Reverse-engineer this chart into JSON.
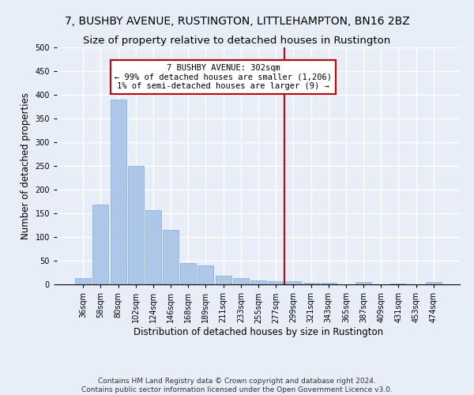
{
  "title": "7, BUSHBY AVENUE, RUSTINGTON, LITTLEHAMPTON, BN16 2BZ",
  "subtitle": "Size of property relative to detached houses in Rustington",
  "xlabel": "Distribution of detached houses by size in Rustington",
  "ylabel": "Number of detached properties",
  "categories": [
    "36sqm",
    "58sqm",
    "80sqm",
    "102sqm",
    "124sqm",
    "146sqm",
    "168sqm",
    "189sqm",
    "211sqm",
    "233sqm",
    "255sqm",
    "277sqm",
    "299sqm",
    "321sqm",
    "343sqm",
    "365sqm",
    "387sqm",
    "409sqm",
    "431sqm",
    "453sqm",
    "474sqm"
  ],
  "values": [
    13,
    168,
    390,
    250,
    157,
    115,
    45,
    40,
    18,
    13,
    9,
    6,
    7,
    3,
    4,
    0,
    5,
    0,
    1,
    0,
    5
  ],
  "bar_color": "#aec6e8",
  "bar_edge_color": "#7aaed6",
  "background_color": "#e8eef7",
  "grid_color": "#ffffff",
  "vline_x_index": 11.5,
  "vline_color": "#cc0000",
  "annotation_text": "7 BUSHBY AVENUE: 302sqm\n← 99% of detached houses are smaller (1,206)\n1% of semi-detached houses are larger (9) →",
  "annotation_box_color": "#cc0000",
  "ylim": [
    0,
    500
  ],
  "yticks": [
    0,
    50,
    100,
    150,
    200,
    250,
    300,
    350,
    400,
    450,
    500
  ],
  "footer": "Contains HM Land Registry data © Crown copyright and database right 2024.\nContains public sector information licensed under the Open Government Licence v3.0.",
  "title_fontsize": 10,
  "subtitle_fontsize": 9.5,
  "ylabel_fontsize": 8.5,
  "xlabel_fontsize": 8.5,
  "tick_fontsize": 7
}
